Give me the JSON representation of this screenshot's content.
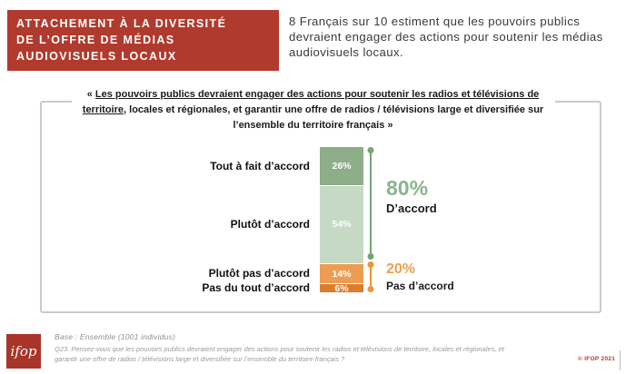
{
  "header": {
    "title_lines": [
      "ATTACHEMENT À LA DIVERSITÉ",
      "DE L’OFFRE DE MÉDIAS",
      "AUDIOVISUELS LOCAUX"
    ],
    "summary": "8 Français sur 10 estiment que les pouvoirs publics devraient engager des actions pour soutenir les médias audiovisuels locaux."
  },
  "quote": {
    "prefix": "« ",
    "underlined": "Les pouvoirs publics devraient engager des actions pour soutenir les radios et télévisions de territoire",
    "rest": ", locales et régionales, et garantir une offre de radios / télévisions large et diversifiée sur l’ensemble du territoire français »"
  },
  "chart_data": {
    "type": "bar",
    "stacked": true,
    "orientation": "vertical",
    "title": "« Les pouvoirs publics devraient engager des actions pour soutenir les radios et télévisions de territoire, locales et régionales, et garantir une offre de radios / télévisions large et diversifiée sur l’ensemble du territoire français »",
    "categories": [
      "Tout à fait d’accord",
      "Plutôt d’accord",
      "Plutôt pas d’accord",
      "Pas du tout d’accord"
    ],
    "values": [
      26,
      54,
      14,
      6
    ],
    "value_labels": [
      "26%",
      "54%",
      "14%",
      "6%"
    ],
    "colors": [
      "#8ead89",
      "#c6d9c4",
      "#ec9d53",
      "#d97e2d"
    ],
    "legend": "none",
    "aggregates": [
      {
        "value": "80%",
        "label": "D’accord",
        "color": "#8cb58e",
        "line_color": "#74a476"
      },
      {
        "value": "20%",
        "label": "Pas d’accord",
        "color": "#eda04c",
        "line_color": "#e9963e"
      }
    ]
  },
  "footer": {
    "logo_text": "ifop",
    "base": "Base : Ensemble (1001 individus)",
    "question": "Q23. Pensez-vous que les pouvoirs publics devraient engager des actions pour soutenir les radios et télévisions de territoire, locales et régionales, et garantir une offre de radios / télévisions large et diversifiée sur l’ensemble du territoire français ?",
    "copyright": "© IFOP 2021"
  },
  "colors": {
    "brand_red": "#b13a2e",
    "logo_red": "#a93429",
    "panel_border": "#cbcbcb"
  }
}
